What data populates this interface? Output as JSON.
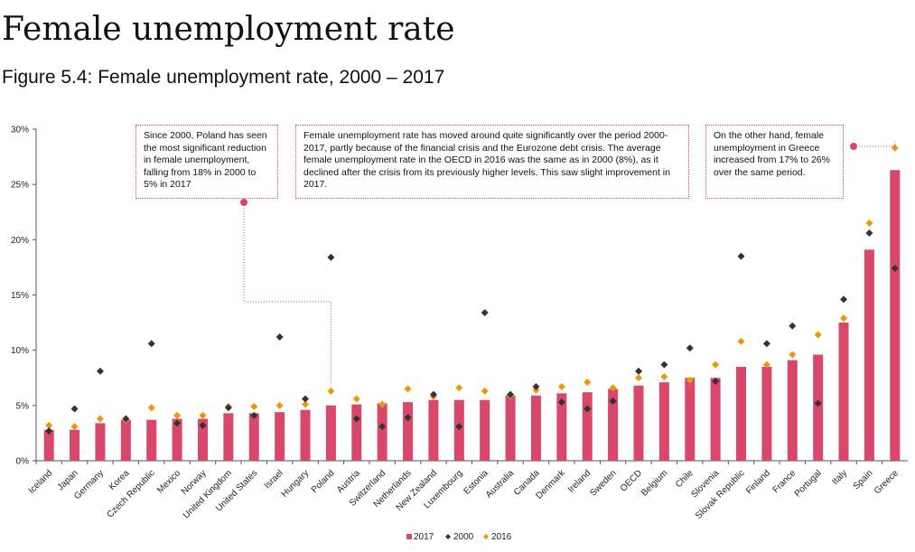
{
  "page": {
    "heading": "Female unemployment rate",
    "subheading": "Figure 5.4: Female unemployment rate, 2000 – 2017"
  },
  "annotations": [
    {
      "text": "Since 2000, Poland has seen the most significant reduction in female unemployment, falling from 18% in 2000 to 5% in 2017"
    },
    {
      "text": "Female unemployment rate has moved around quite significantly over the period 2000-2017, partly because of the financial crisis and the Eurozone debt crisis. The average female unemployment rate in the OECD in 2016 was the same as in 2000 (8%), as it declined after the crisis from its previously higher levels. This saw slight improvement in 2017."
    },
    {
      "text": "On the other hand, female unemployment in Greece increased from 17% to 26% over the same period."
    }
  ],
  "colors": {
    "bar": "#d9486a",
    "marker2000": "#333333",
    "marker2016": "#f0960a",
    "annotation": "#d9486a"
  },
  "chart_data": {
    "type": "bar",
    "title": "Figure 5.4: Female unemployment rate, 2000 – 2017",
    "ylim": [
      0,
      30
    ],
    "yticks": [
      0,
      5,
      10,
      15,
      20,
      25,
      30
    ],
    "ytick_labels": [
      "0%",
      "5%",
      "10%",
      "15%",
      "20%",
      "25%",
      "30%"
    ],
    "grid": false,
    "legend_position": "bottom-center",
    "categories": [
      "Iceland",
      "Japan",
      "Germany",
      "Korea",
      "Czech Republic",
      "Mexico",
      "Norway",
      "United Kingdom",
      "United States",
      "Israel",
      "Hungary",
      "Poland",
      "Austria",
      "Switzerland",
      "Netherlands",
      "New Zealand",
      "Luxembourg",
      "Estonia",
      "Australia",
      "Canada",
      "Denmark",
      "Ireland",
      "Sweden",
      "OECD",
      "Belgium",
      "Chile",
      "Slovenia",
      "Slovak Republic",
      "Finland",
      "France",
      "Portugal",
      "Italy",
      "Spain",
      "Greece"
    ],
    "series": [
      {
        "name": "2017",
        "kind": "bar",
        "values": [
          2.8,
          2.8,
          3.4,
          3.7,
          3.7,
          3.8,
          3.8,
          4.3,
          4.3,
          4.4,
          4.6,
          5.0,
          5.1,
          5.2,
          5.3,
          5.5,
          5.5,
          5.5,
          5.9,
          5.9,
          6.1,
          6.2,
          6.5,
          6.8,
          7.1,
          7.5,
          7.5,
          8.5,
          8.5,
          9.1,
          9.6,
          12.5,
          19.1,
          26.3
        ]
      },
      {
        "name": "2000",
        "kind": "marker",
        "values": [
          2.7,
          4.7,
          8.1,
          3.8,
          10.6,
          3.4,
          3.2,
          4.8,
          4.1,
          11.2,
          5.6,
          18.4,
          3.8,
          3.1,
          3.9,
          6.0,
          3.1,
          13.4,
          6.0,
          6.7,
          5.3,
          4.7,
          5.4,
          8.1,
          8.7,
          10.2,
          7.2,
          18.5,
          10.6,
          12.2,
          5.2,
          14.6,
          20.6,
          17.4
        ]
      },
      {
        "name": "2016",
        "kind": "marker",
        "values": [
          3.2,
          3.1,
          3.8,
          3.7,
          4.8,
          4.1,
          4.1,
          4.9,
          4.9,
          5.0,
          5.1,
          6.3,
          5.6,
          5.1,
          6.5,
          5.8,
          6.6,
          6.3,
          5.9,
          6.4,
          6.7,
          7.1,
          6.6,
          7.5,
          7.6,
          7.3,
          8.7,
          10.8,
          8.7,
          9.6,
          11.4,
          12.9,
          21.5,
          28.3
        ]
      }
    ]
  }
}
